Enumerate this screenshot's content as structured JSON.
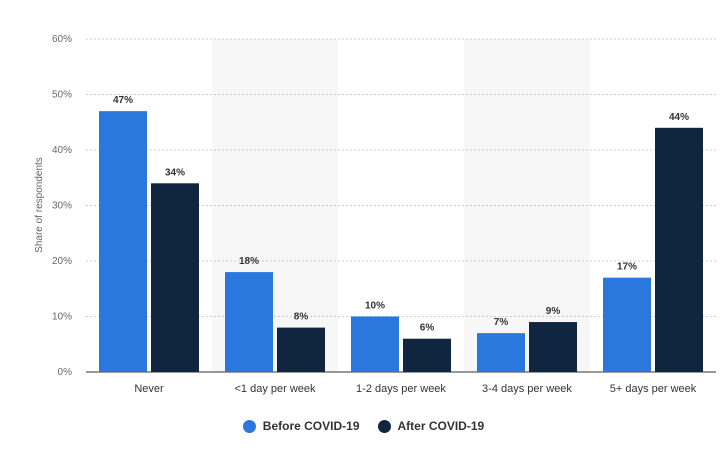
{
  "chart_data": {
    "type": "bar",
    "ylabel": "Share of respondents",
    "y_ticks": [
      "0%",
      "10%",
      "20%",
      "30%",
      "40%",
      "50%",
      "60%"
    ],
    "ylim": [
      0,
      60
    ],
    "grid": true,
    "categories": [
      "Never",
      "<1 day per week",
      "1-2 days per week",
      "3-4 days per week",
      "5+ days per week"
    ],
    "series": [
      {
        "name": "Before COVID-19",
        "color": "#2a77dd",
        "values": [
          47,
          18,
          10,
          7,
          17
        ],
        "labels": [
          "47%",
          "18%",
          "10%",
          "7%",
          "17%"
        ]
      },
      {
        "name": "After COVID-19",
        "color": "#0f2540",
        "values": [
          34,
          8,
          6,
          9,
          44
        ],
        "labels": [
          "34%",
          "8%",
          "6%",
          "9%",
          "44%"
        ]
      }
    ],
    "legend_position": "bottom"
  }
}
